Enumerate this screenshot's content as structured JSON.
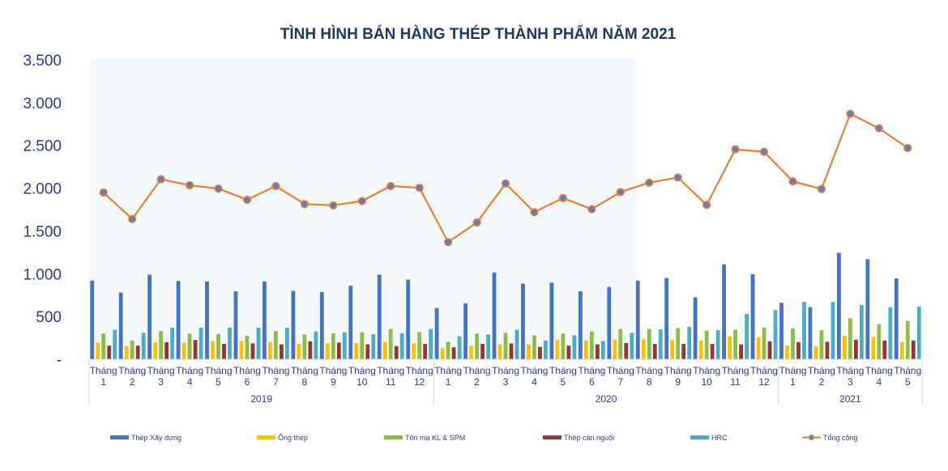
{
  "chart_data": {
    "type": "bar",
    "title": "TÌNH HÌNH BÁN HÀNG THÉP THÀNH PHẨM NĂM 2021",
    "xlabel": "",
    "ylabel": "",
    "ylim": [
      0,
      3500
    ],
    "yticks": [
      0,
      500,
      1000,
      1500,
      2000,
      2500,
      3000,
      3500
    ],
    "ytick_labels": [
      "-",
      "500",
      "1.000",
      "1.500",
      "2.000",
      "2.500",
      "3.000",
      "3.500"
    ],
    "legend_position": "bottom",
    "grid": false,
    "month_word": "Tháng",
    "categories": [
      "1",
      "2",
      "3",
      "4",
      "5",
      "6",
      "7",
      "8",
      "9",
      "10",
      "11",
      "12",
      "1",
      "2",
      "3",
      "4",
      "5",
      "6",
      "7",
      "8",
      "9",
      "10",
      "11",
      "12",
      "1",
      "2",
      "3",
      "4",
      "5"
    ],
    "groups": [
      {
        "label": "2019",
        "start": 0,
        "count": 12
      },
      {
        "label": "2020",
        "start": 12,
        "count": 12
      },
      {
        "label": "2021",
        "start": 24,
        "count": 5
      }
    ],
    "series": [
      {
        "name": "Thép Xây dựng",
        "kind": "bar",
        "color": "#4472c4",
        "values": [
          920,
          780,
          990,
          915,
          910,
          795,
          910,
          800,
          785,
          860,
          990,
          930,
          600,
          655,
          1015,
          885,
          895,
          795,
          845,
          920,
          950,
          725,
          1110,
          995,
          660,
          610,
          1245,
          1170,
          945
        ]
      },
      {
        "name": "Ống thép",
        "kind": "bar",
        "color": "#ffc000",
        "values": [
          195,
          155,
          200,
          195,
          215,
          215,
          205,
          180,
          185,
          190,
          205,
          185,
          130,
          160,
          175,
          175,
          230,
          220,
          230,
          235,
          225,
          220,
          270,
          260,
          160,
          155,
          275,
          260,
          205
        ]
      },
      {
        "name": "Tôn mạ KL & SPM",
        "kind": "bar",
        "color": "#8fbc45",
        "values": [
          300,
          220,
          330,
          300,
          295,
          275,
          330,
          290,
          305,
          315,
          355,
          320,
          205,
          300,
          310,
          280,
          300,
          325,
          355,
          355,
          365,
          335,
          345,
          370,
          360,
          340,
          480,
          410,
          450
        ]
      },
      {
        "name": "Thép cán nguội",
        "kind": "bar",
        "color": "#943634",
        "values": [
          160,
          160,
          200,
          225,
          180,
          185,
          175,
          210,
          195,
          175,
          155,
          180,
          140,
          180,
          185,
          145,
          160,
          175,
          190,
          180,
          180,
          180,
          175,
          210,
          200,
          205,
          230,
          220,
          220
        ]
      },
      {
        "name": "HRC",
        "kind": "bar",
        "color": "#4bacc6",
        "values": [
          345,
          310,
          370,
          370,
          370,
          370,
          370,
          325,
          315,
          295,
          305,
          355,
          270,
          290,
          345,
          220,
          280,
          215,
          310,
          350,
          380,
          340,
          530,
          575,
          670,
          670,
          635,
          610,
          615
        ]
      },
      {
        "name": "Tổng cộng",
        "kind": "line",
        "color": "#ed7d31",
        "marker_color": "#5b7fbf",
        "values": [
          1950,
          1640,
          2105,
          2035,
          1995,
          1865,
          2025,
          1815,
          1800,
          1850,
          2025,
          2005,
          1370,
          1600,
          2055,
          1720,
          1885,
          1755,
          1955,
          2065,
          2125,
          1805,
          2455,
          2425,
          2080,
          1990,
          2870,
          2700,
          2470
        ]
      }
    ]
  }
}
